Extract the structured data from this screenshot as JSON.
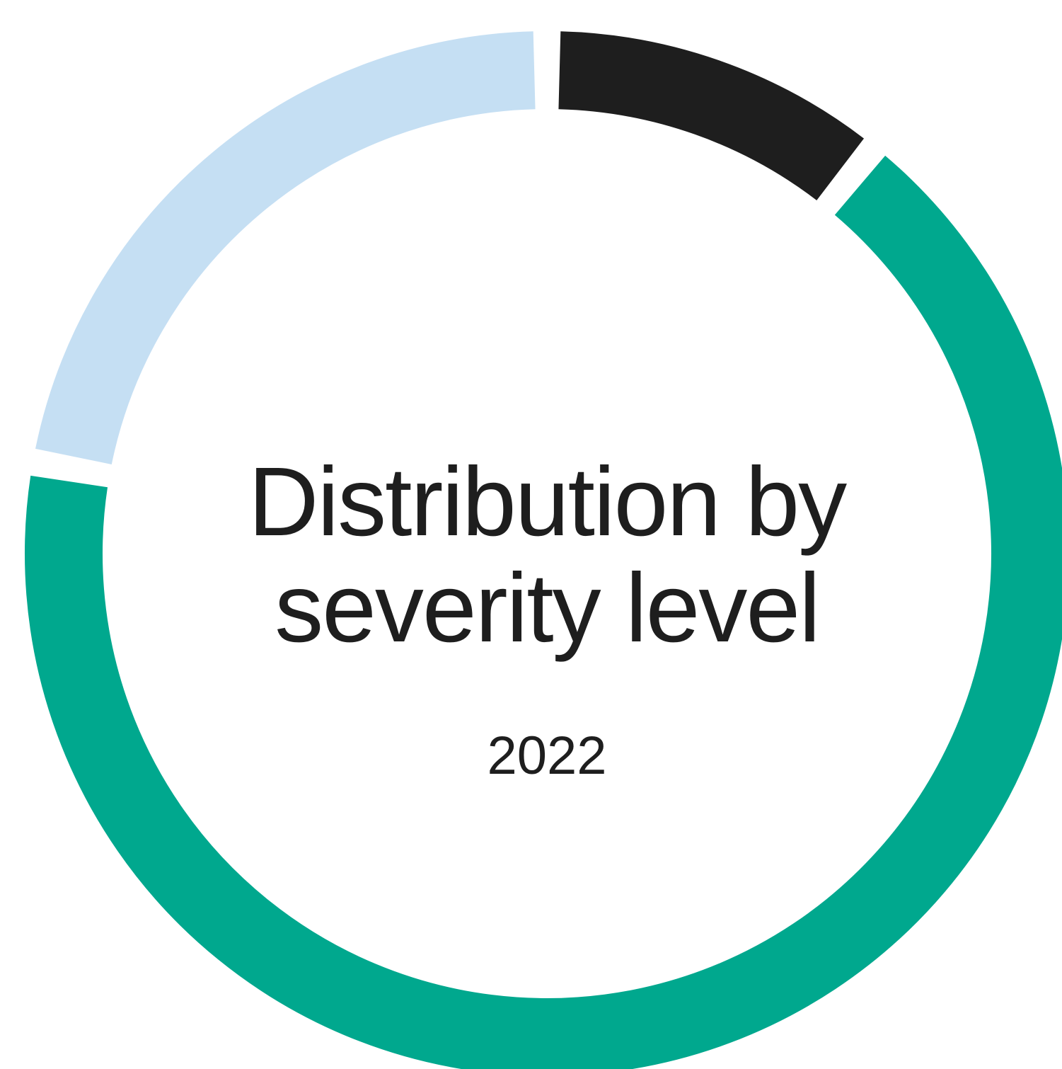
{
  "chart_data": {
    "type": "pie",
    "variant": "donut",
    "title_lines": [
      "Distribution by",
      "severity level"
    ],
    "subtitle": "2022",
    "legend": "none",
    "slices": [
      {
        "value": 10.8,
        "color": "#1e1e1e"
      },
      {
        "value": 67.0,
        "color": "#00a88e"
      },
      {
        "value": 22.2,
        "color": "#c5dff3"
      }
    ]
  }
}
